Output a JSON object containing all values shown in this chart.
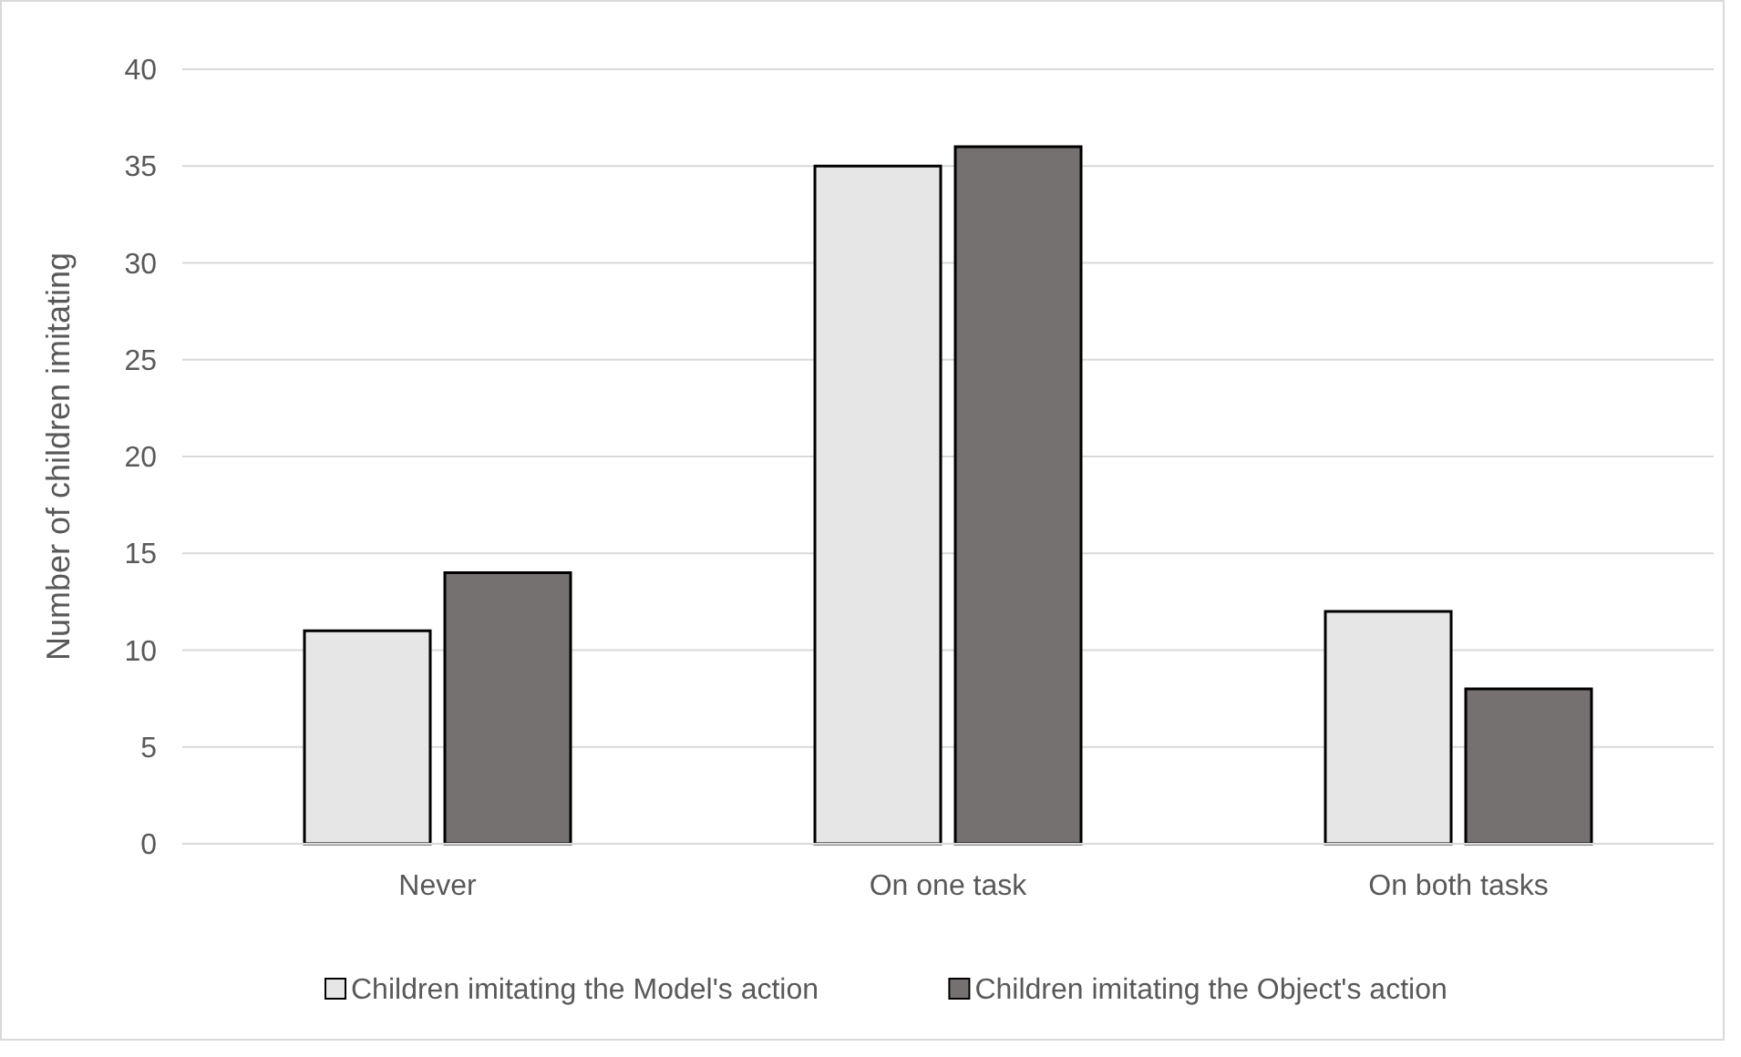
{
  "chart_data": {
    "type": "bar",
    "ylabel": "Number of children imitating",
    "categories": [
      "Never",
      "On one task",
      "On both tasks"
    ],
    "series": [
      {
        "name": "Children imitating the Model's action",
        "color": "#e7e6e6",
        "values": [
          11,
          35,
          12
        ]
      },
      {
        "name": "Children imitating the Object's action",
        "color": "#767171",
        "values": [
          14,
          36,
          8
        ]
      }
    ],
    "ylim": [
      0,
      40
    ],
    "yticks": [
      0,
      5,
      10,
      15,
      20,
      25,
      30,
      35,
      40
    ],
    "grid": "y",
    "legend": "bottom"
  }
}
